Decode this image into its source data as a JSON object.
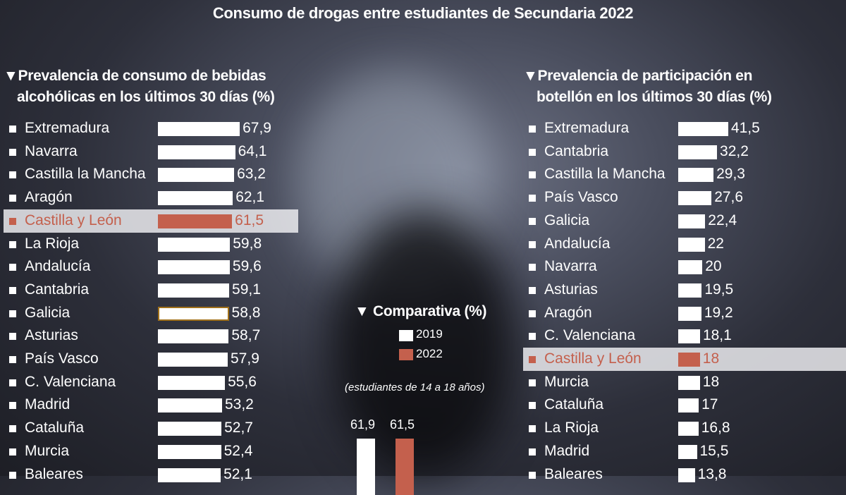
{
  "title": "Consumo de drogas entre estudiantes de Secundaria 2022",
  "colors": {
    "default": "#ffffff",
    "highlight": "#c4604d",
    "galicia_outline": "#a0701a"
  },
  "chart_data": [
    {
      "type": "bar",
      "orientation": "horizontal",
      "title": "Prevalencia de consumo de bebidas alcohólicas en los últimos 30 días (%)",
      "title_lines": [
        "Prevalencia de consumo de bebidas",
        "alcohólicas en los últimos 30 días (%)"
      ],
      "highlight": "Castilla y León",
      "categories": [
        "Extremadura",
        "Navarra",
        "Castilla la Mancha",
        "Aragón",
        "Castilla y León",
        "La Rioja",
        "Andalucía",
        "Cantabria",
        "Galicia",
        "Asturias",
        "País Vasco",
        "C. Valenciana",
        "Madrid",
        "Cataluña",
        "Murcia",
        "Baleares"
      ],
      "values": [
        67.9,
        64.1,
        63.2,
        62.1,
        61.5,
        59.8,
        59.6,
        59.1,
        58.8,
        58.7,
        57.9,
        55.6,
        53.2,
        52.7,
        52.4,
        52.1
      ],
      "labels": [
        "67,9",
        "64,1",
        "63,2",
        "62,1",
        "61,5",
        "59,8",
        "59,6",
        "59,1",
        "58,8",
        "58,7",
        "57,9",
        "55,6",
        "53,2",
        "52,7",
        "52,4",
        "52,1"
      ]
    },
    {
      "type": "bar",
      "orientation": "horizontal",
      "title": "Prevalencia de participación en botellón en los últimos 30 días (%)",
      "title_lines": [
        "Prevalencia de participación en",
        "botellón en los últimos 30 días (%)"
      ],
      "highlight": "Castilla y León",
      "categories": [
        "Extremadura",
        "Cantabria",
        "Castilla la Mancha",
        "País Vasco",
        "Galicia",
        "Andalucía",
        "Navarra",
        "Asturias",
        "Aragón",
        "C. Valenciana",
        "Castilla y León",
        "Murcia",
        "Cataluña",
        "La Rioja",
        "Madrid",
        "Baleares"
      ],
      "values": [
        41.5,
        32.2,
        29.3,
        27.6,
        22.4,
        22,
        20,
        19.5,
        19.2,
        18.1,
        18,
        18,
        17,
        16.8,
        15.5,
        13.8
      ],
      "labels": [
        "41,5",
        "32,2",
        "29,3",
        "27,6",
        "22,4",
        "22",
        "20",
        "19,5",
        "19,2",
        "18,1",
        "18",
        "18",
        "17",
        "16,8",
        "15,5",
        "13,8"
      ]
    },
    {
      "type": "bar",
      "title": "Comparativa (%)",
      "subtitle": "(estudiantes de 14 a 18 años)",
      "series": [
        {
          "name": "2019",
          "values": [
            61.9
          ],
          "label": "61,9",
          "color": "#ffffff"
        },
        {
          "name": "2022",
          "values": [
            61.5
          ],
          "label": "61,5",
          "color": "#c4604d"
        }
      ]
    }
  ]
}
